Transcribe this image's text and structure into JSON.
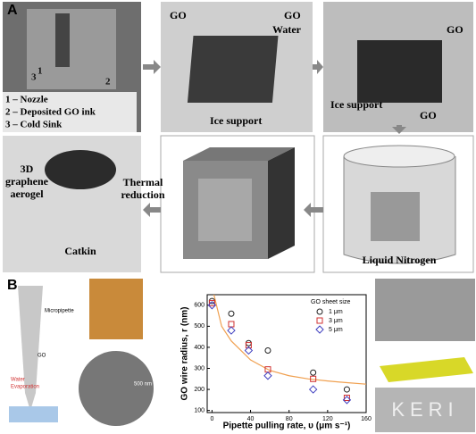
{
  "panel_a": {
    "label": "A",
    "photo1": {
      "markers": [
        "1",
        "2",
        "3"
      ],
      "legend": [
        "1 – Nozzle",
        "2 – Deposited GO ink",
        "3 – Cold Sink"
      ]
    },
    "photo2": {
      "labels": [
        "GO",
        "GO",
        "Water",
        "Ice support"
      ]
    },
    "photo3": {
      "labels": [
        "GO",
        "Ice support",
        "GO"
      ]
    },
    "photo4": {
      "lines": [
        "3D",
        "graphene",
        "aerogel"
      ],
      "label": "Catkin"
    },
    "step": [
      "Thermal",
      "reduction"
    ],
    "photo6": {
      "label": "Liquid Nitrogen"
    }
  },
  "panel_b": {
    "label": "B",
    "schematic": {
      "labels": [
        "Micropipette",
        "GO",
        "Water",
        "Evaporation"
      ]
    },
    "scale_bar": "500 nm",
    "pattern_text": "KERI"
  },
  "chart_data": {
    "type": "scatter",
    "x_label": "Pipette pulling rate, υ (μm s⁻¹)",
    "y_label": "GO wire radius, r (nm)",
    "xlim": [
      -5,
      160
    ],
    "xticks": [
      0,
      40,
      80,
      120,
      160
    ],
    "ylim": [
      90,
      650
    ],
    "yticks": [
      100,
      200,
      300,
      400,
      500,
      600
    ],
    "legend_title": "GO sheet size",
    "legend": "upper right",
    "x": [
      0,
      20,
      38,
      58,
      105,
      140
    ],
    "series": [
      {
        "name": "1 μm",
        "color": "#222222",
        "marker": "circle",
        "values": [
          620,
          560,
          420,
          385,
          280,
          200
        ]
      },
      {
        "name": "3 μm",
        "color": "#d03030",
        "marker": "square",
        "values": [
          610,
          510,
          410,
          295,
          250,
          160
        ]
      },
      {
        "name": "5 μm",
        "color": "#4040c0",
        "marker": "diamond",
        "values": [
          600,
          480,
          385,
          265,
          200,
          150
        ]
      }
    ],
    "fit": {
      "color": "#f0a050",
      "x": [
        2,
        10,
        20,
        40,
        60,
        80,
        100,
        120,
        140,
        160
      ],
      "values": [
        650,
        500,
        430,
        340,
        290,
        265,
        250,
        240,
        232,
        225
      ]
    }
  }
}
